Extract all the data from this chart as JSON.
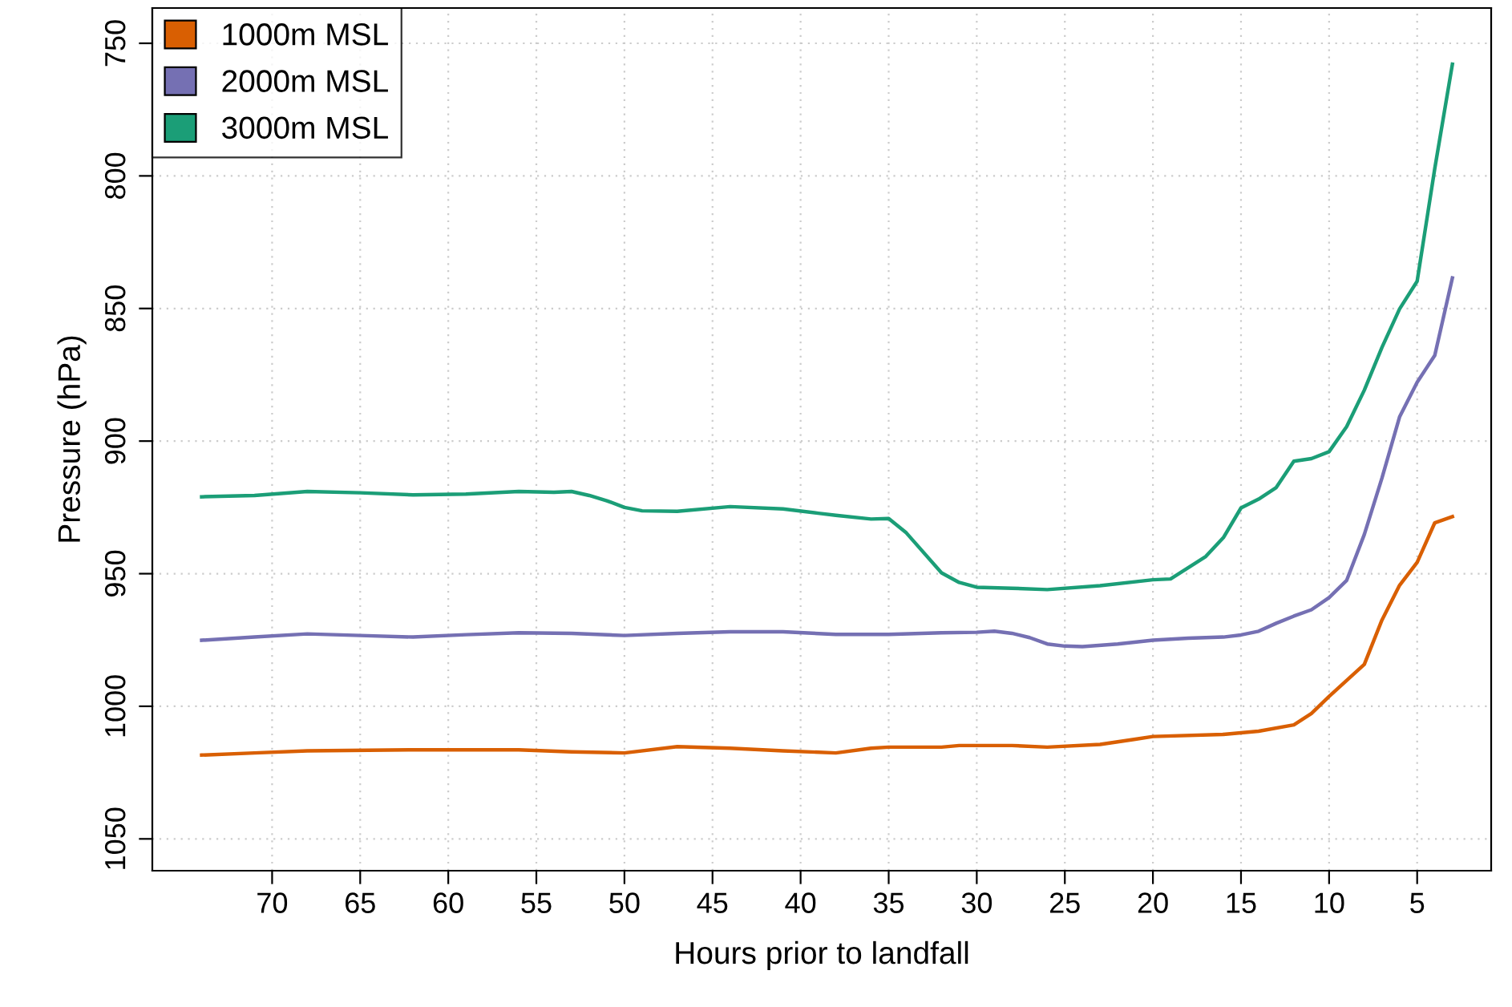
{
  "chart_data": {
    "type": "line",
    "xlabel": "Hours prior to landfall",
    "ylabel": "Pressure (hPa)",
    "xlim": [
      76.8,
      0.8
    ],
    "ylim": [
      1062,
      736.7
    ],
    "xticks": [
      70,
      65,
      60,
      55,
      50,
      45,
      40,
      35,
      30,
      25,
      20,
      15,
      10,
      5
    ],
    "yticks": [
      750,
      800,
      850,
      900,
      950,
      1000,
      1050
    ],
    "grid": true,
    "legend": "top left",
    "marker": "none",
    "line_style": "solid",
    "series": [
      {
        "name": "1000m MSL",
        "color": "#d95f02",
        "x": [
          74,
          71,
          68,
          62,
          56,
          53,
          50,
          47,
          44,
          41,
          38,
          36,
          35,
          32,
          31,
          28,
          26,
          23,
          21,
          20,
          16,
          14,
          12,
          11,
          10,
          8,
          7,
          6,
          5,
          4,
          3
        ],
        "values": [
          1018.4,
          1017.6,
          1016.8,
          1016.4,
          1016.4,
          1017.2,
          1017.6,
          1015.2,
          1015.8,
          1016.8,
          1017.6,
          1015.8,
          1015.4,
          1015.4,
          1014.8,
          1014.8,
          1015.4,
          1014.4,
          1012.4,
          1011.4,
          1010.6,
          1009.4,
          1007,
          1002.7,
          996.3,
          984.2,
          967.5,
          954.4,
          945.7,
          930.8,
          928.5
        ]
      },
      {
        "name": "2000m MSL",
        "color": "#7570b3",
        "x": [
          74,
          71,
          68,
          65,
          62,
          59,
          56,
          53,
          50,
          47,
          44,
          41,
          38,
          35,
          32,
          30,
          29,
          28,
          27,
          26,
          25,
          24,
          22,
          20,
          18,
          16,
          15,
          14,
          13,
          12,
          11,
          10,
          9,
          8,
          7,
          6,
          5,
          4,
          3
        ],
        "values": [
          975.1,
          973.9,
          972.7,
          973.3,
          973.9,
          973,
          972.3,
          972.5,
          973.3,
          972.5,
          971.9,
          971.9,
          972.9,
          972.9,
          972.3,
          972.1,
          971.7,
          972.5,
          974.1,
          976.5,
          977.3,
          977.5,
          976.5,
          975.1,
          974.3,
          973.9,
          973.1,
          971.7,
          968.7,
          966,
          963.6,
          959,
          952.5,
          935.2,
          914,
          890.9,
          877.8,
          867.7,
          838.5
        ]
      },
      {
        "name": "3000m MSL",
        "color": "#1b9e77",
        "x": [
          74,
          71,
          68,
          65,
          62,
          59,
          56,
          54,
          53,
          52,
          51,
          50,
          49,
          47,
          44,
          41,
          39,
          38,
          36,
          35,
          34,
          32,
          31,
          30,
          28,
          26,
          23,
          20,
          19,
          17,
          16,
          15,
          14,
          13,
          12,
          11,
          10,
          9,
          8,
          7,
          6,
          5,
          4,
          3
        ],
        "values": [
          921,
          920.5,
          919,
          919.5,
          920.3,
          920,
          919,
          919.3,
          919,
          920.5,
          922.5,
          925,
          926.3,
          926.5,
          924.7,
          925.6,
          927.2,
          928,
          929.4,
          929.2,
          934.6,
          949.7,
          953.3,
          955.1,
          955.5,
          956,
          954.5,
          952.3,
          952,
          943.5,
          936.4,
          925.2,
          921.9,
          917.5,
          907.6,
          906.6,
          904,
          894.5,
          880.8,
          864.7,
          850.2,
          839.7,
          797.2,
          757.9
        ]
      }
    ]
  }
}
